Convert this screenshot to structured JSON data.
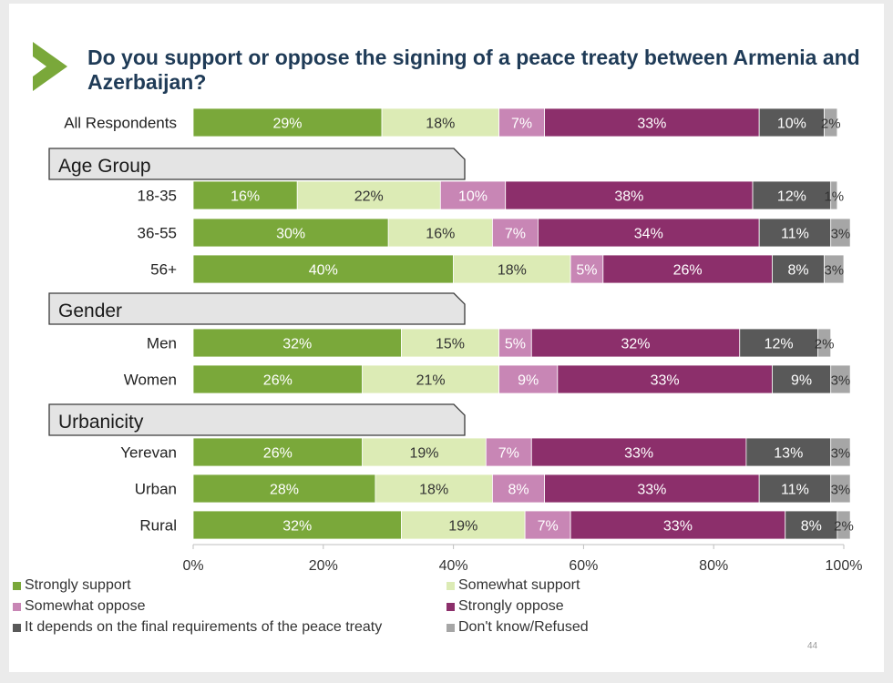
{
  "title": "Do you support or oppose the signing of a peace treaty between Armenia and Azerbaijan?",
  "page_number": "44",
  "chart_data": {
    "type": "bar",
    "orientation": "horizontal",
    "stacked": true,
    "title": "Do you support or oppose the signing of a peace treaty between Armenia and Azerbaijan?",
    "xlim": [
      0,
      100
    ],
    "x_ticks": [
      "0%",
      "20%",
      "40%",
      "60%",
      "80%",
      "100%"
    ],
    "legend_position": "bottom",
    "series_names": [
      "Strongly support",
      "Somewhat support",
      "Somewhat oppose",
      "Strongly oppose",
      "It depends on the final requirements of the peace treaty",
      "Don't know/Refused"
    ],
    "series_colors": [
      "#7aa83a",
      "#dcebb5",
      "#c886b5",
      "#8c2f6b",
      "#595959",
      "#a6a6a6"
    ],
    "label_colors": [
      "#ffffff",
      "#333333",
      "#ffffff",
      "#ffffff",
      "#ffffff",
      "#333333"
    ],
    "rows": [
      {
        "kind": "bar",
        "label": "All Respondents",
        "values": [
          29,
          18,
          7,
          33,
          10,
          2
        ]
      },
      {
        "kind": "group",
        "label": "Age Group"
      },
      {
        "kind": "bar",
        "label": "18-35",
        "values": [
          16,
          22,
          10,
          38,
          12,
          1
        ]
      },
      {
        "kind": "bar",
        "label": "36-55",
        "values": [
          30,
          16,
          7,
          34,
          11,
          3
        ]
      },
      {
        "kind": "bar",
        "label": "56+",
        "values": [
          40,
          18,
          5,
          26,
          8,
          3
        ]
      },
      {
        "kind": "group",
        "label": "Gender"
      },
      {
        "kind": "bar",
        "label": "Men",
        "values": [
          32,
          15,
          5,
          32,
          12,
          2
        ]
      },
      {
        "kind": "bar",
        "label": "Women",
        "values": [
          26,
          21,
          9,
          33,
          9,
          3
        ]
      },
      {
        "kind": "group",
        "label": "Urbanicity"
      },
      {
        "kind": "bar",
        "label": "Yerevan",
        "values": [
          26,
          19,
          7,
          33,
          13,
          3
        ]
      },
      {
        "kind": "bar",
        "label": "Urban",
        "values": [
          28,
          18,
          8,
          33,
          11,
          3
        ]
      },
      {
        "kind": "bar",
        "label": "Rural",
        "values": [
          32,
          19,
          7,
          33,
          8,
          2
        ]
      }
    ]
  }
}
